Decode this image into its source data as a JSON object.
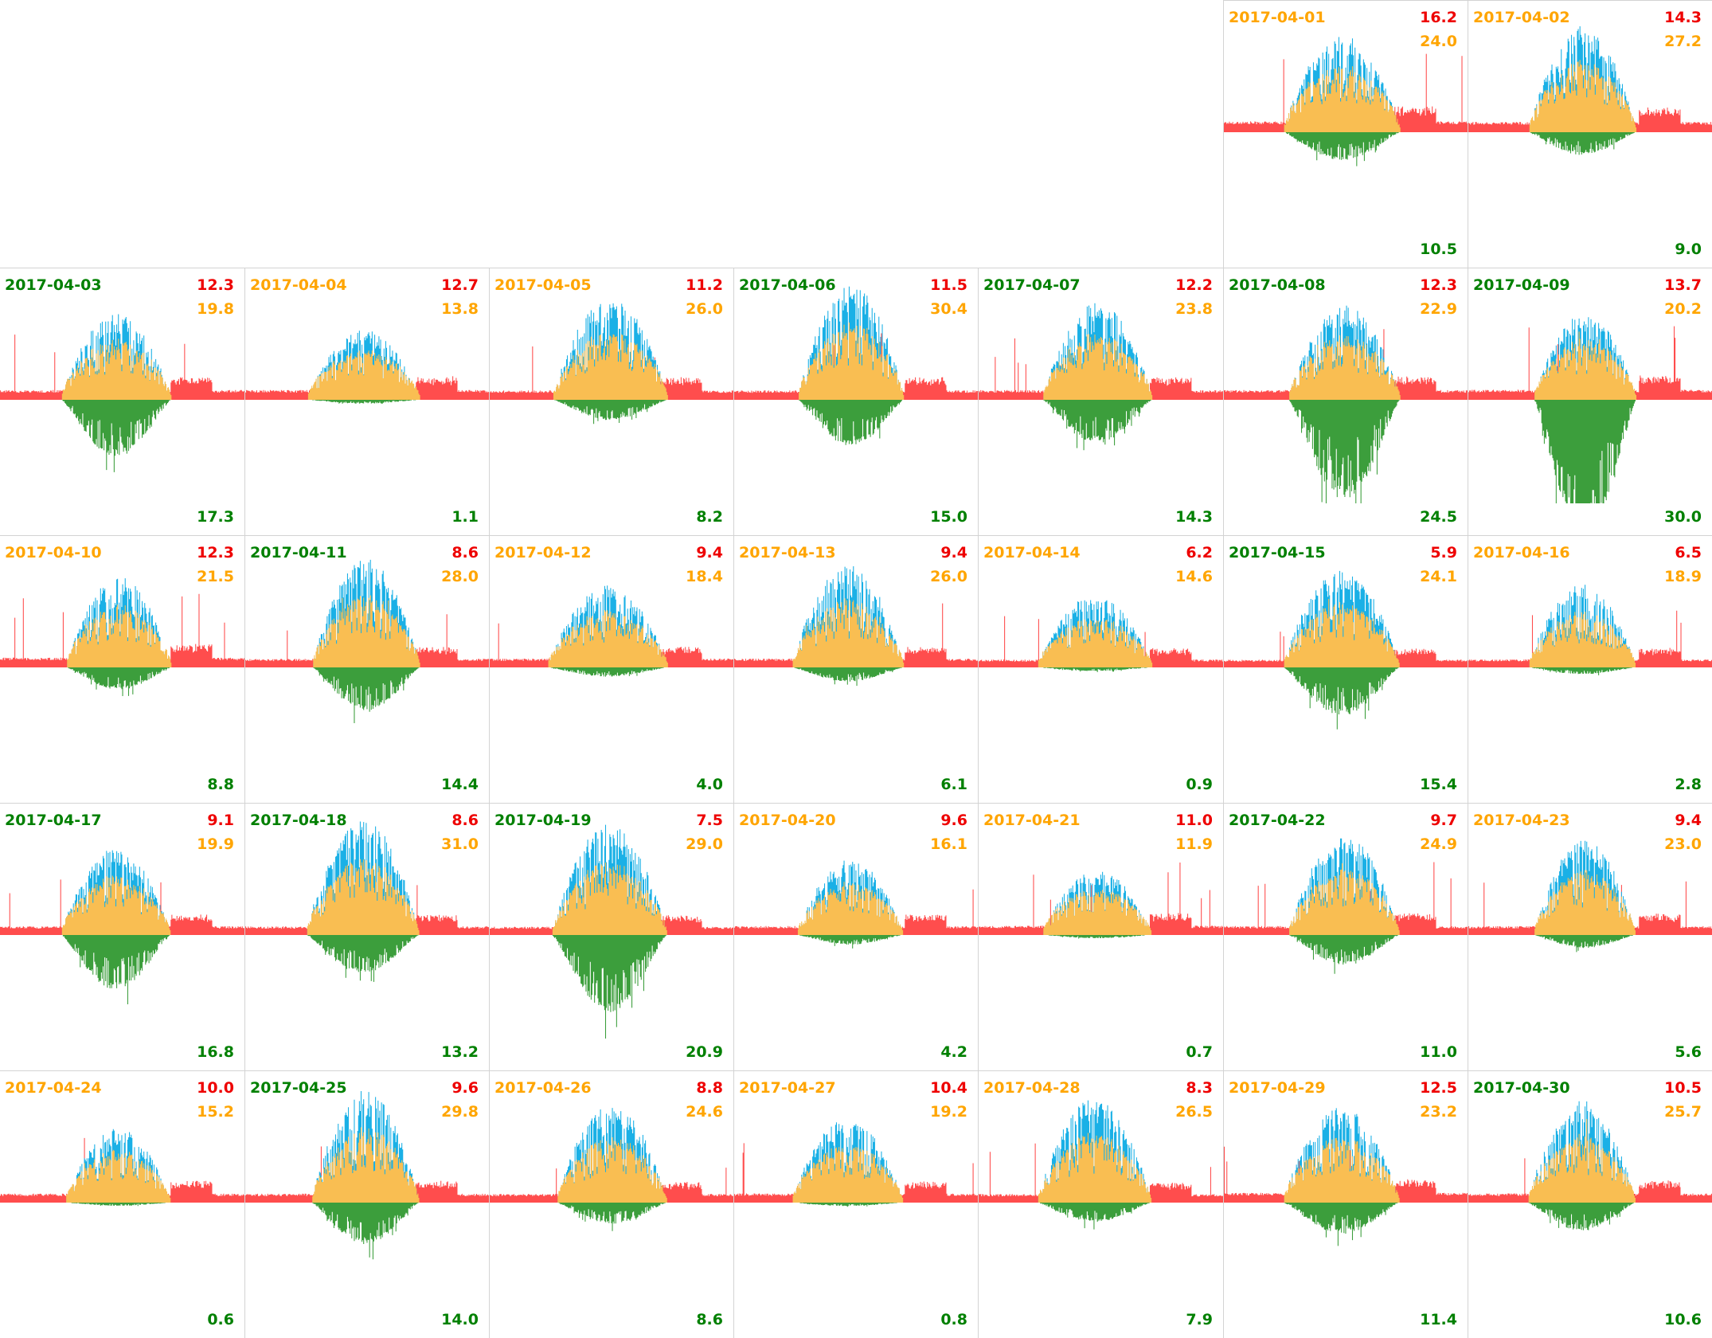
{
  "colors": {
    "consumption": "#ff4d4d",
    "self_consumed": "#f9be52",
    "generation": "#1ab0e6",
    "export": "#3c9e3c",
    "label_consumption": "#ee0000",
    "label_generation": "#ffa500",
    "label_export": "#008000",
    "date_green": "#008000",
    "date_orange": "#ffa500",
    "grid": "#d3d3d3"
  },
  "chart_data": {
    "type": "area",
    "title": "",
    "description_series": [
      "consumption",
      "generation",
      "export"
    ],
    "layout": "calendar grid, 7 columns (weeks starting Monday)",
    "days": [
      {
        "date": "2017-04-01",
        "week": 0,
        "weekday": 5,
        "date_color": "orange",
        "consumption": 16.2,
        "generation": 24.0,
        "export": 10.5
      },
      {
        "date": "2017-04-02",
        "week": 0,
        "weekday": 6,
        "date_color": "orange",
        "consumption": 14.3,
        "generation": 27.2,
        "export": 9.0
      },
      {
        "date": "2017-04-03",
        "week": 1,
        "weekday": 0,
        "date_color": "green",
        "consumption": 12.3,
        "generation": 19.8,
        "export": 17.3
      },
      {
        "date": "2017-04-04",
        "week": 1,
        "weekday": 1,
        "date_color": "orange",
        "consumption": 12.7,
        "generation": 13.8,
        "export": 1.1
      },
      {
        "date": "2017-04-05",
        "week": 1,
        "weekday": 2,
        "date_color": "orange",
        "consumption": 11.2,
        "generation": 26.0,
        "export": 8.2
      },
      {
        "date": "2017-04-06",
        "week": 1,
        "weekday": 3,
        "date_color": "green",
        "consumption": 11.5,
        "generation": 30.4,
        "export": 15.0
      },
      {
        "date": "2017-04-07",
        "week": 1,
        "weekday": 4,
        "date_color": "green",
        "consumption": 12.2,
        "generation": 23.8,
        "export": 14.3
      },
      {
        "date": "2017-04-08",
        "week": 1,
        "weekday": 5,
        "date_color": "green",
        "consumption": 12.3,
        "generation": 22.9,
        "export": 24.5
      },
      {
        "date": "2017-04-09",
        "week": 1,
        "weekday": 6,
        "date_color": "green",
        "consumption": 13.7,
        "generation": 20.2,
        "export": 30.0
      },
      {
        "date": "2017-04-10",
        "week": 2,
        "weekday": 0,
        "date_color": "orange",
        "consumption": 12.3,
        "generation": 21.5,
        "export": 8.8
      },
      {
        "date": "2017-04-11",
        "week": 2,
        "weekday": 1,
        "date_color": "green",
        "consumption": 8.6,
        "generation": 28.0,
        "export": 14.4
      },
      {
        "date": "2017-04-12",
        "week": 2,
        "weekday": 2,
        "date_color": "orange",
        "consumption": 9.4,
        "generation": 18.4,
        "export": 4.0
      },
      {
        "date": "2017-04-13",
        "week": 2,
        "weekday": 3,
        "date_color": "orange",
        "consumption": 9.4,
        "generation": 26.0,
        "export": 6.1
      },
      {
        "date": "2017-04-14",
        "week": 2,
        "weekday": 4,
        "date_color": "orange",
        "consumption": 6.2,
        "generation": 14.6,
        "export": 0.9
      },
      {
        "date": "2017-04-15",
        "week": 2,
        "weekday": 5,
        "date_color": "green",
        "consumption": 5.9,
        "generation": 24.1,
        "export": 15.4
      },
      {
        "date": "2017-04-16",
        "week": 2,
        "weekday": 6,
        "date_color": "orange",
        "consumption": 6.5,
        "generation": 18.9,
        "export": 2.8
      },
      {
        "date": "2017-04-17",
        "week": 3,
        "weekday": 0,
        "date_color": "green",
        "consumption": 9.1,
        "generation": 19.9,
        "export": 16.8
      },
      {
        "date": "2017-04-18",
        "week": 3,
        "weekday": 1,
        "date_color": "green",
        "consumption": 8.6,
        "generation": 31.0,
        "export": 13.2
      },
      {
        "date": "2017-04-19",
        "week": 3,
        "weekday": 2,
        "date_color": "green",
        "consumption": 7.5,
        "generation": 29.0,
        "export": 20.9
      },
      {
        "date": "2017-04-20",
        "week": 3,
        "weekday": 3,
        "date_color": "orange",
        "consumption": 9.6,
        "generation": 16.1,
        "export": 4.2
      },
      {
        "date": "2017-04-21",
        "week": 3,
        "weekday": 4,
        "date_color": "orange",
        "consumption": 11.0,
        "generation": 11.9,
        "export": 0.7
      },
      {
        "date": "2017-04-22",
        "week": 3,
        "weekday": 5,
        "date_color": "green",
        "consumption": 9.7,
        "generation": 24.9,
        "export": 11.0
      },
      {
        "date": "2017-04-23",
        "week": 3,
        "weekday": 6,
        "date_color": "orange",
        "consumption": 9.4,
        "generation": 23.0,
        "export": 5.6
      },
      {
        "date": "2017-04-24",
        "week": 4,
        "weekday": 0,
        "date_color": "orange",
        "consumption": 10.0,
        "generation": 15.2,
        "export": 0.6
      },
      {
        "date": "2017-04-25",
        "week": 4,
        "weekday": 1,
        "date_color": "green",
        "consumption": 9.6,
        "generation": 29.8,
        "export": 14.0
      },
      {
        "date": "2017-04-26",
        "week": 4,
        "weekday": 2,
        "date_color": "orange",
        "consumption": 8.8,
        "generation": 24.6,
        "export": 8.6
      },
      {
        "date": "2017-04-27",
        "week": 4,
        "weekday": 3,
        "date_color": "orange",
        "consumption": 10.4,
        "generation": 19.2,
        "export": 0.8
      },
      {
        "date": "2017-04-28",
        "week": 4,
        "weekday": 4,
        "date_color": "orange",
        "consumption": 8.3,
        "generation": 26.5,
        "export": 7.9
      },
      {
        "date": "2017-04-29",
        "week": 4,
        "weekday": 5,
        "date_color": "orange",
        "consumption": 12.5,
        "generation": 23.2,
        "export": 11.4
      },
      {
        "date": "2017-04-30",
        "week": 4,
        "weekday": 6,
        "date_color": "green",
        "consumption": 10.5,
        "generation": 25.7,
        "export": 10.6
      }
    ]
  }
}
